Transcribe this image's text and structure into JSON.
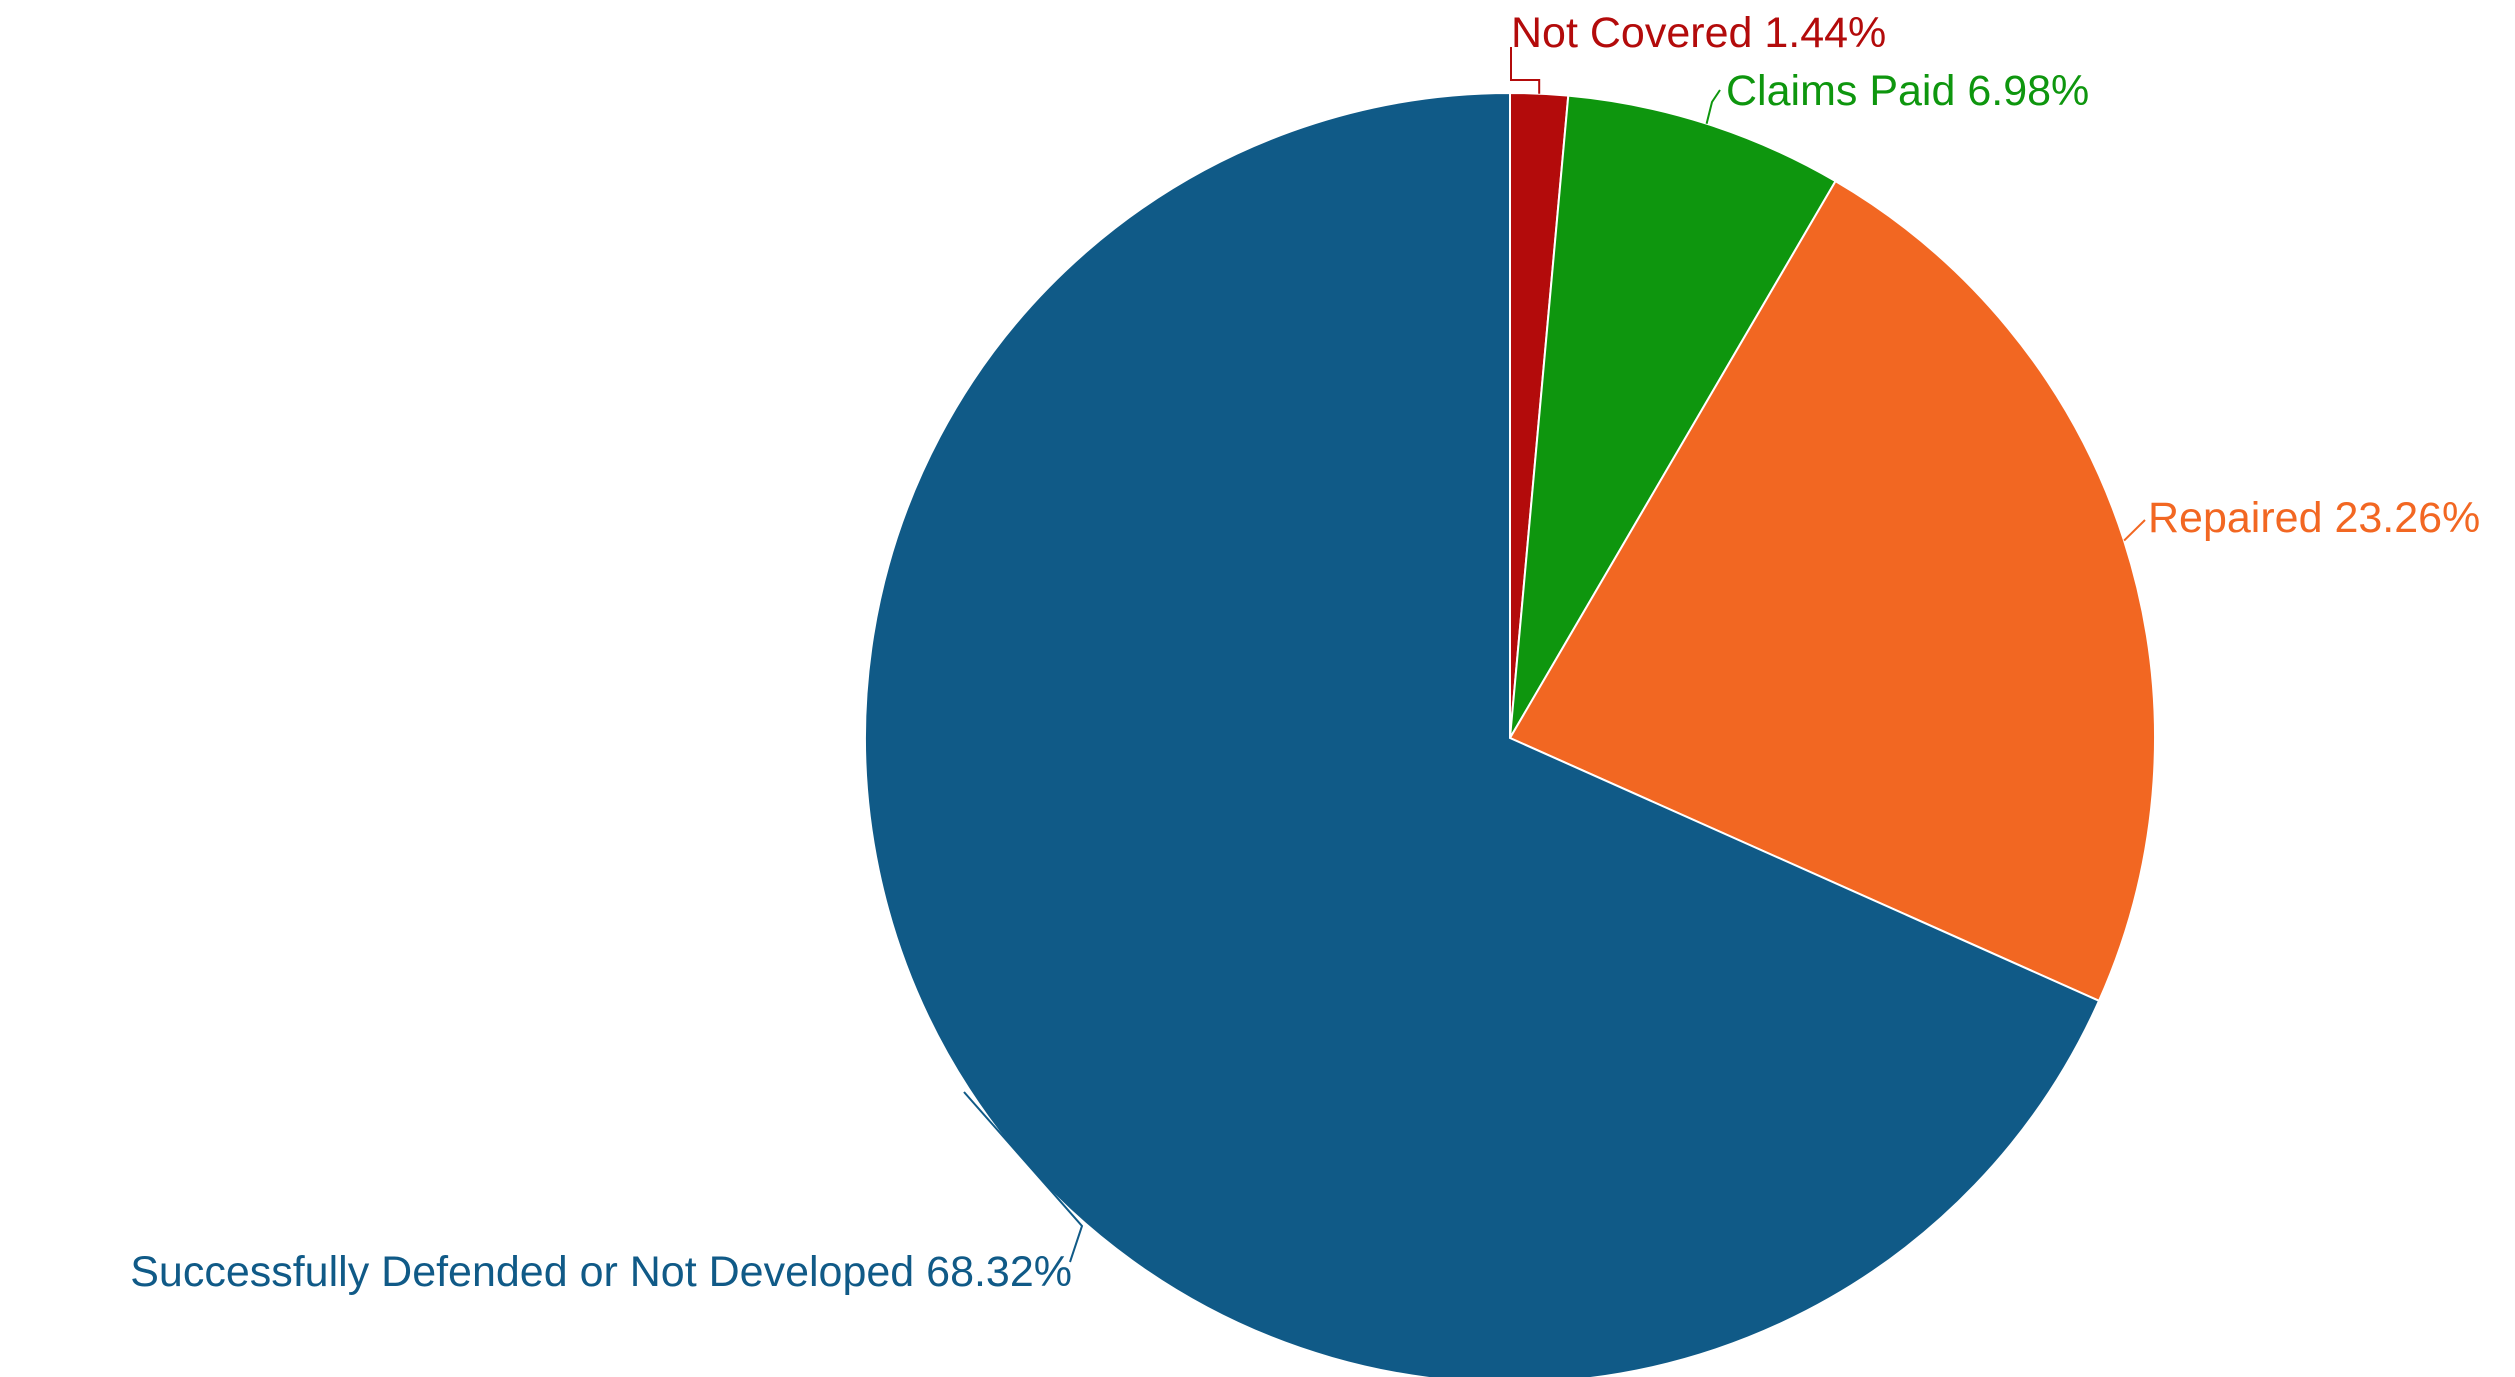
{
  "chart_data": {
    "type": "pie",
    "start_angle_deg": 0,
    "direction": "clockwise",
    "slices": [
      {
        "label": "Not Covered",
        "value": 1.44,
        "display": "Not Covered 1.44%",
        "color": "#B30B0B"
      },
      {
        "label": "Claims Paid",
        "value": 6.98,
        "display": "Claims Paid 6.98%",
        "color": "#0E960E"
      },
      {
        "label": "Repaired",
        "value": 23.26,
        "display": "Repaired 23.26%",
        "color": "#F26722"
      },
      {
        "label": "Successfully Defended or Not Developed",
        "value": 68.32,
        "display": "Successfully Defended or Not Developed 68.32%",
        "color": "#105A87"
      }
    ],
    "legend": "none",
    "labels_outside_with_leader_lines": true
  }
}
